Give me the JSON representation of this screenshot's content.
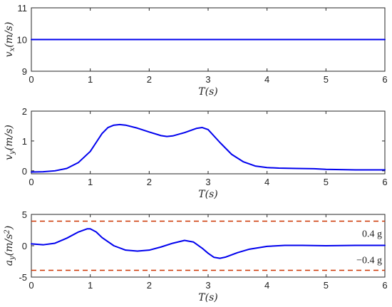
{
  "chart_data": [
    {
      "type": "line",
      "title": "",
      "xlabel": "T(s)",
      "ylabel": "v_x(m/s)",
      "xlim": [
        0,
        6
      ],
      "ylim": [
        9,
        11
      ],
      "xticks": [
        0,
        1,
        2,
        3,
        4,
        5,
        6
      ],
      "yticks": [
        9,
        10,
        11
      ],
      "x_tick_labels": [
        "0",
        "1",
        "2",
        "3",
        "4",
        "5",
        "6"
      ],
      "y_tick_labels": [
        "9",
        "10",
        "11"
      ],
      "grid": false,
      "series": [
        {
          "color": "#0000ee",
          "x": [
            0,
            1,
            2,
            3,
            4,
            5,
            6
          ],
          "y": [
            10,
            10,
            10,
            10,
            10,
            10,
            10
          ]
        }
      ]
    },
    {
      "type": "line",
      "title": "",
      "xlabel": "T(s)",
      "ylabel": "v_y(m/s)",
      "xlim": [
        0,
        6
      ],
      "ylim": [
        -0.1,
        2
      ],
      "xticks": [
        0,
        1,
        2,
        3,
        4,
        5,
        6
      ],
      "yticks": [
        0,
        1,
        2
      ],
      "x_tick_labels": [
        "0",
        "1",
        "2",
        "3",
        "4",
        "5",
        "6"
      ],
      "y_tick_labels": [
        "0",
        "1",
        "2"
      ],
      "grid": false,
      "series": [
        {
          "color": "#0000ee",
          "x": [
            0,
            0.2,
            0.4,
            0.6,
            0.8,
            1.0,
            1.1,
            1.2,
            1.3,
            1.4,
            1.5,
            1.6,
            1.8,
            2.0,
            2.2,
            2.3,
            2.4,
            2.6,
            2.8,
            2.9,
            3.0,
            3.2,
            3.4,
            3.6,
            3.8,
            4.0,
            4.2,
            4.5,
            4.8,
            5.0,
            5.5,
            6.0
          ],
          "y": [
            -0.04,
            -0.03,
            0.0,
            0.08,
            0.28,
            0.65,
            0.95,
            1.25,
            1.45,
            1.53,
            1.55,
            1.53,
            1.43,
            1.3,
            1.18,
            1.15,
            1.17,
            1.28,
            1.42,
            1.45,
            1.38,
            0.95,
            0.55,
            0.3,
            0.16,
            0.11,
            0.09,
            0.08,
            0.07,
            0.05,
            0.03,
            0.03
          ]
        }
      ]
    },
    {
      "type": "line",
      "title": "",
      "xlabel": "T(s)",
      "ylabel": "a_y(m/s²)",
      "xlim": [
        0,
        6
      ],
      "ylim": [
        -5,
        5
      ],
      "xticks": [
        0,
        1,
        2,
        3,
        4,
        5,
        6
      ],
      "yticks": [
        -5,
        0,
        5
      ],
      "x_tick_labels": [
        "0",
        "1",
        "2",
        "3",
        "4",
        "5",
        "6"
      ],
      "y_tick_labels": [
        "-5",
        "0",
        "5"
      ],
      "grid": false,
      "annotations": [
        "0.4 g",
        "−0.4 g"
      ],
      "reference_lines": [
        {
          "y": 3.92,
          "style": "dashed",
          "color": "#cc3300",
          "label": "0.4 g"
        },
        {
          "y": -3.92,
          "style": "dashed",
          "color": "#cc3300",
          "label": "−0.4 g"
        }
      ],
      "series": [
        {
          "color": "#0000ee",
          "x": [
            0,
            0.2,
            0.4,
            0.6,
            0.8,
            0.95,
            1.0,
            1.1,
            1.2,
            1.4,
            1.6,
            1.8,
            2.0,
            2.2,
            2.4,
            2.6,
            2.75,
            2.9,
            3.0,
            3.1,
            3.2,
            3.3,
            3.5,
            3.7,
            4.0,
            4.3,
            4.6,
            5.0,
            5.5,
            6.0
          ],
          "y": [
            0.3,
            0.15,
            0.4,
            1.2,
            2.2,
            2.7,
            2.7,
            2.2,
            1.3,
            0.0,
            -0.7,
            -0.85,
            -0.7,
            -0.2,
            0.4,
            0.85,
            0.6,
            -0.4,
            -1.2,
            -1.85,
            -2.0,
            -1.8,
            -1.1,
            -0.55,
            -0.1,
            0.05,
            0.05,
            0.0,
            0.05,
            0.05
          ]
        }
      ]
    }
  ]
}
